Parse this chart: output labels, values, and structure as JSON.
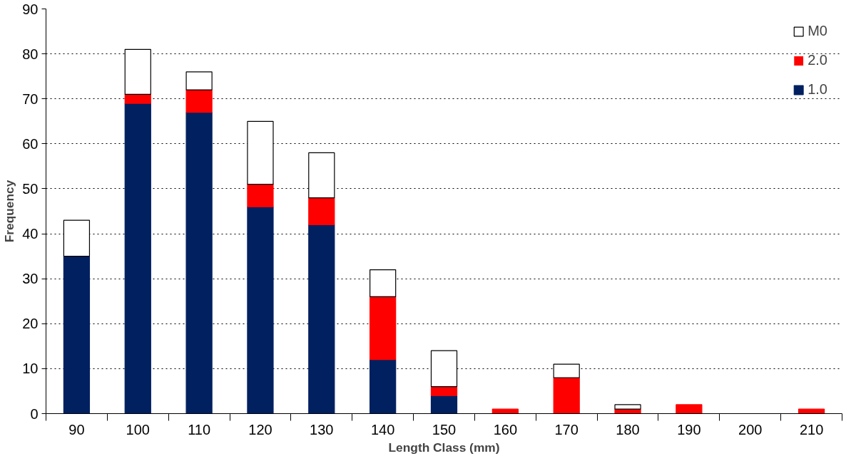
{
  "chart_data": {
    "type": "bar",
    "stacked": true,
    "xlabel": "Length Class (mm)",
    "ylabel": "Frequency",
    "categories": [
      "90",
      "100",
      "110",
      "120",
      "130",
      "140",
      "150",
      "160",
      "170",
      "180",
      "190",
      "200",
      "210"
    ],
    "series": [
      {
        "name": "1.0",
        "color": "#002060",
        "values": [
          35,
          69,
          67,
          46,
          42,
          12,
          4,
          0,
          0,
          0,
          0,
          0,
          0
        ]
      },
      {
        "name": "2.0",
        "color": "#ff0000",
        "values": [
          0,
          2,
          5,
          5,
          6,
          14,
          2,
          1,
          8,
          1,
          2,
          0,
          1
        ]
      },
      {
        "name": "M0",
        "color": "#ffffff",
        "values": [
          8,
          10,
          4,
          14,
          10,
          6,
          8,
          0,
          3,
          1,
          0,
          0,
          0
        ]
      }
    ],
    "ylim": [
      0,
      90
    ],
    "yticks": [
      0,
      10,
      20,
      30,
      40,
      50,
      60,
      70,
      80,
      90
    ],
    "grid": "y",
    "legend": "top right"
  }
}
